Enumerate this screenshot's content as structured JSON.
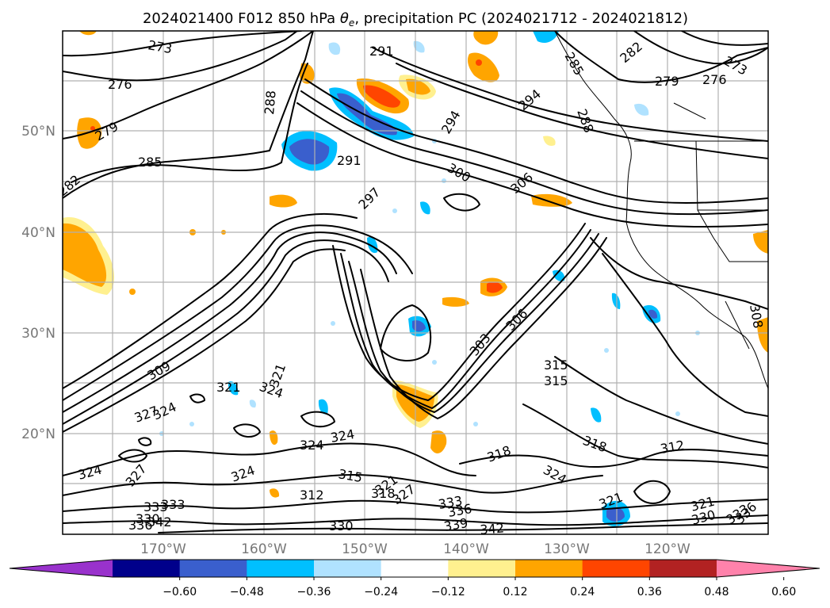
{
  "title": {
    "main": "2024021400 F012 850 hPa ",
    "theta_symbol": "θ",
    "theta_subscript": "e",
    "rest": ", precipitation PC (2024021712 - 2024021812)"
  },
  "axes": {
    "lat_labels": [
      "50°N",
      "40°N",
      "30°N",
      "20°N"
    ],
    "lon_labels": [
      "170°W",
      "160°W",
      "150°W",
      "140°W",
      "130°W",
      "120°W"
    ]
  },
  "colorbar": {
    "colors": [
      "#9932cc",
      "#00008b",
      "#3a5fcd",
      "#00bfff",
      "#b0e2ff",
      "#ffffff",
      "#fff08f",
      "#ffa500",
      "#ff4500",
      "#b22222",
      "#ff82ab"
    ],
    "tick_labels": [
      "−0.60",
      "−0.48",
      "−0.36",
      "−0.24",
      "−0.12",
      "0.12",
      "0.24",
      "0.36",
      "0.48",
      "0.60"
    ]
  },
  "contour_labels": [
    "273",
    "276",
    "279",
    "282",
    "285",
    "288",
    "291",
    "294",
    "297",
    "300",
    "303",
    "306",
    "309",
    "312",
    "315",
    "318",
    "321",
    "324",
    "327",
    "330",
    "333",
    "336",
    "339",
    "342"
  ],
  "map_legend_icons": [
    "coastline-icon",
    "state-border-icon"
  ]
}
